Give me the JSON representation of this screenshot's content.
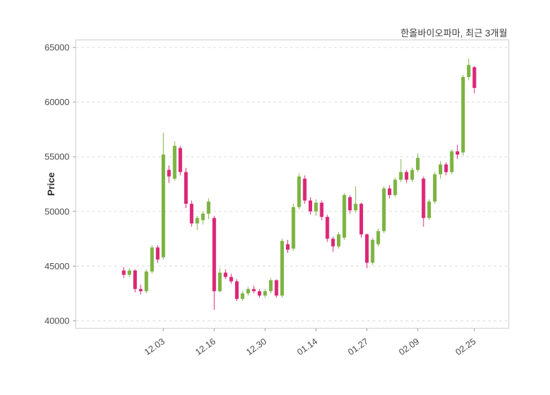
{
  "chart_data": {
    "type": "candlestick",
    "title": "한올바이오파마, 최근 3개월",
    "ylabel": "Price",
    "grid": true,
    "legend": "none",
    "ylim": [
      39300,
      65700
    ],
    "y_ticks": [
      40000,
      45000,
      50000,
      55000,
      60000,
      65000
    ],
    "x_tick_labels": [
      "12.03",
      "12.16",
      "12.30",
      "01.14",
      "01.27",
      "02.09",
      "02.25"
    ],
    "x_tick_indices": [
      7,
      16,
      25,
      34,
      43,
      52,
      62
    ],
    "colors": {
      "up": "#7CB342",
      "down": "#DB2777",
      "grid": "#DCDCDC",
      "border": "#C8C8C8",
      "text": "#3C3C3C",
      "tick": "#4A4A4A"
    },
    "candles": [
      [
        44600,
        44900,
        43900,
        44200
      ],
      [
        44200,
        44800,
        44000,
        44600
      ],
      [
        44600,
        44700,
        42600,
        42900
      ],
      [
        42900,
        43300,
        42400,
        42700
      ],
      [
        42700,
        44700,
        42500,
        44500
      ],
      [
        44500,
        46900,
        44300,
        46700
      ],
      [
        46700,
        46900,
        45300,
        45600
      ],
      [
        45800,
        57200,
        45600,
        55200
      ],
      [
        53800,
        54200,
        52600,
        53200
      ],
      [
        53000,
        56400,
        52800,
        56000
      ],
      [
        55800,
        56000,
        53300,
        53600
      ],
      [
        53600,
        54000,
        50300,
        50700
      ],
      [
        50700,
        51000,
        48600,
        48900
      ],
      [
        48900,
        49600,
        48300,
        49400
      ],
      [
        49200,
        50000,
        48800,
        49800
      ],
      [
        49800,
        51200,
        49300,
        50900
      ],
      [
        49400,
        49600,
        41000,
        42700
      ],
      [
        42700,
        44800,
        42600,
        44400
      ],
      [
        44400,
        44700,
        43800,
        44000
      ],
      [
        44000,
        44300,
        43400,
        43600
      ],
      [
        43600,
        43800,
        41800,
        42000
      ],
      [
        42000,
        42700,
        41800,
        42500
      ],
      [
        42500,
        43100,
        42300,
        42900
      ],
      [
        42900,
        43200,
        42500,
        42700
      ],
      [
        42700,
        42900,
        42100,
        42300
      ],
      [
        42300,
        42900,
        42100,
        42700
      ],
      [
        42700,
        43900,
        42500,
        43700
      ],
      [
        43700,
        43800,
        42100,
        42300
      ],
      [
        42300,
        47500,
        42100,
        47300
      ],
      [
        47000,
        47400,
        46200,
        46500
      ],
      [
        46600,
        50700,
        46400,
        50400
      ],
      [
        50400,
        53500,
        50200,
        53200
      ],
      [
        53000,
        53300,
        50700,
        51000
      ],
      [
        51000,
        51300,
        49700,
        50000
      ],
      [
        50000,
        51100,
        49600,
        50800
      ],
      [
        50800,
        51000,
        49200,
        49500
      ],
      [
        49500,
        49700,
        47200,
        47500
      ],
      [
        47500,
        47700,
        46300,
        46800
      ],
      [
        46800,
        48100,
        46600,
        47900
      ],
      [
        47600,
        51700,
        47400,
        51500
      ],
      [
        51300,
        51500,
        49800,
        50100
      ],
      [
        50100,
        52300,
        49900,
        50700
      ],
      [
        50700,
        50800,
        47600,
        47900
      ],
      [
        47900,
        48000,
        44800,
        45300
      ],
      [
        45300,
        47600,
        45100,
        47400
      ],
      [
        47000,
        48400,
        46800,
        48200
      ],
      [
        48200,
        52300,
        48000,
        52100
      ],
      [
        52100,
        52400,
        51200,
        51500
      ],
      [
        51500,
        53100,
        51300,
        52900
      ],
      [
        52900,
        54800,
        52700,
        53600
      ],
      [
        53600,
        53800,
        52600,
        52900
      ],
      [
        52900,
        54000,
        52700,
        53800
      ],
      [
        53800,
        55300,
        53600,
        54900
      ],
      [
        53000,
        53200,
        48600,
        49400
      ],
      [
        49400,
        51100,
        49200,
        50900
      ],
      [
        50900,
        53600,
        50700,
        53400
      ],
      [
        53400,
        54600,
        53000,
        54300
      ],
      [
        54300,
        54500,
        53300,
        53600
      ],
      [
        53600,
        55700,
        53400,
        55500
      ],
      [
        55500,
        56100,
        54800,
        55200
      ],
      [
        55400,
        62500,
        55100,
        62300
      ],
      [
        62300,
        64000,
        62000,
        63400
      ],
      [
        63200,
        63300,
        60800,
        61300
      ]
    ]
  }
}
